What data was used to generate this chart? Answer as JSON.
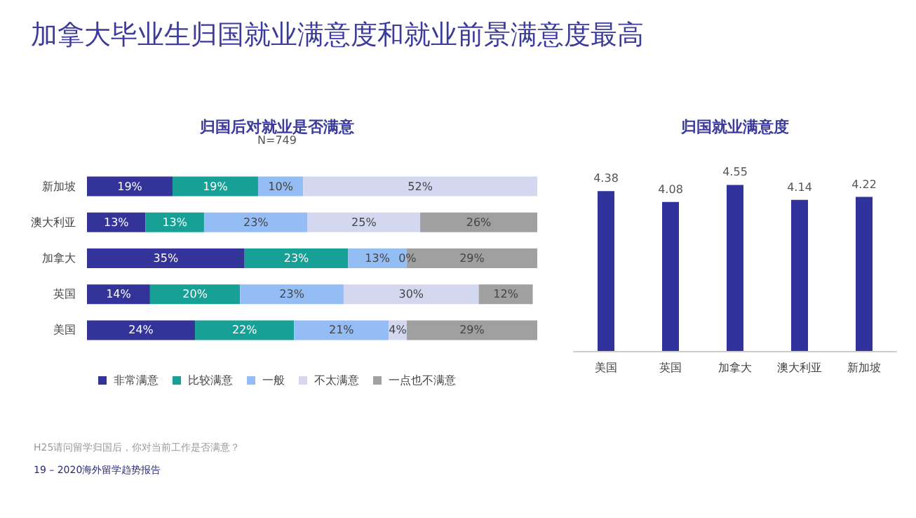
{
  "chart_data": [
    {
      "type": "bar",
      "title": "归国后对就业是否满意",
      "subtitle": "N=749",
      "orientation": "horizontal",
      "stacked": true,
      "legend": "bottom",
      "xlim": [
        0,
        100
      ],
      "tick_labels": "y",
      "annotations": [
        "加拿大毕业生归国就业满意度和就业前景满意度最高",
        "H25请问留学归国后，你对当前工作是否满意？",
        "19 – 2020海外留学趋势报告"
      ],
      "categories": [
        "新加坡",
        "澳大利亚",
        "加拿大",
        "英国",
        "美国"
      ],
      "series": [
        {
          "name": "非常满意",
          "color": "#33339a",
          "values": [
            19,
            13,
            35,
            14,
            24
          ],
          "value_labels": [
            "19%",
            "13%",
            "35%",
            "14%",
            "24%"
          ]
        },
        {
          "name": "比较满意",
          "color": "#16a096",
          "values": [
            19,
            13,
            23,
            20,
            22
          ],
          "value_labels": [
            "19%",
            "13%",
            "23%",
            "20%",
            "22%"
          ]
        },
        {
          "name": "一般",
          "color": "#94bcf5",
          "values": [
            10,
            23,
            13,
            23,
            21
          ],
          "value_labels": [
            "10%",
            "23%",
            "13%",
            "23%",
            "21%"
          ]
        },
        {
          "name": "不太满意",
          "color": "#d3d8f0",
          "values": [
            52,
            25,
            0,
            30,
            4
          ],
          "value_labels": [
            "52%",
            "25%",
            "0%",
            "30%",
            "4%"
          ]
        },
        {
          "name": "一点也不满意",
          "color": "#a0a0a0",
          "values": [
            null,
            26,
            29,
            12,
            29
          ],
          "value_labels": [
            null,
            "26%",
            "29%",
            "12%",
            "29%"
          ]
        }
      ]
    },
    {
      "type": "bar",
      "title": "归国就业满意度",
      "categories": [
        "美国",
        "英国",
        "加拿大",
        "澳大利亚",
        "新加坡"
      ],
      "values": [
        4.38,
        4.08,
        4.55,
        4.14,
        4.22
      ],
      "color": "#32329c",
      "data_labels": true,
      "tick_labels": "x"
    }
  ]
}
